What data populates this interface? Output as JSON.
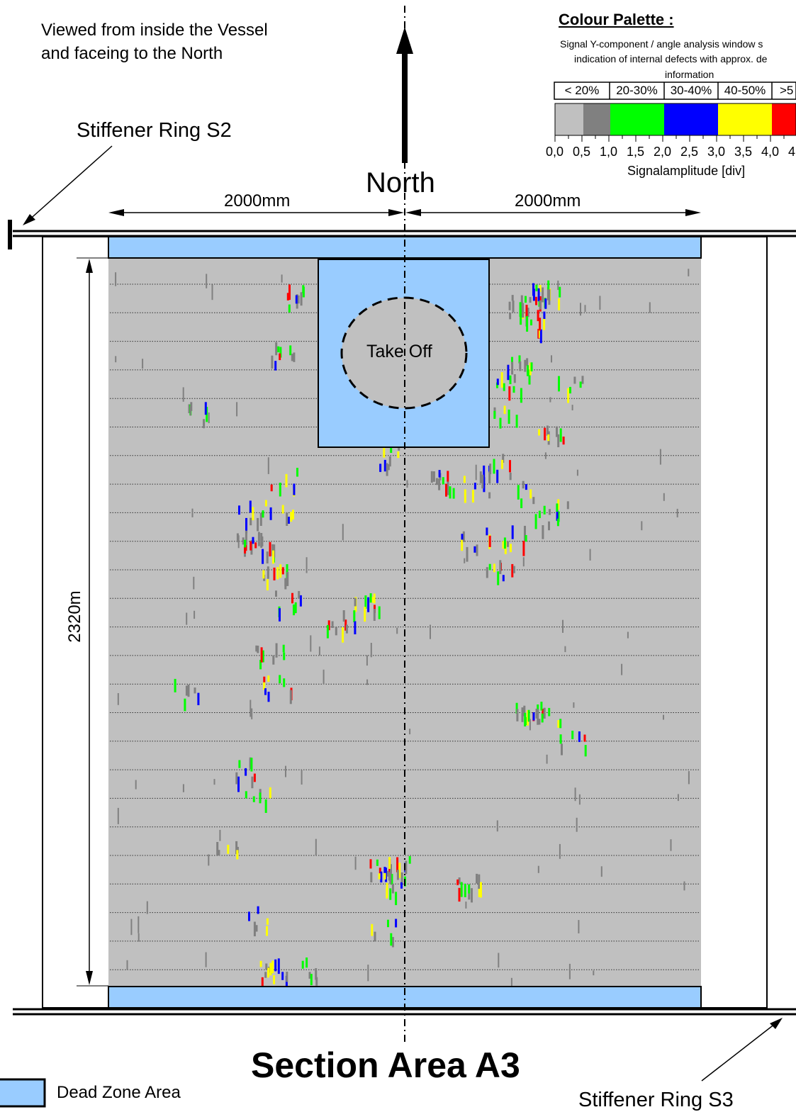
{
  "viewed_text": [
    "Viewed from inside the Vessel",
    "and faceing to the North"
  ],
  "north_label": "North",
  "stiffener_top": "Stiffener Ring S2",
  "stiffener_bottom": "Stiffener Ring S3",
  "dim_left": "2000mm",
  "dim_right": "2000mm",
  "dim_height": "2320m",
  "takeoff_label": "Take Off",
  "title": "Section Area A3",
  "legend_label": "Dead Zone Area",
  "palette": {
    "title": "Colour Palette :",
    "desc": [
      "Signal Y-component / angle analysis window s",
      "indication of internal defects with approx. de",
      "information"
    ],
    "ranges": [
      "< 20%",
      "20-30%",
      "30-40%",
      "40-50%",
      ">5"
    ],
    "ticks": [
      "0,0",
      "0,5",
      "1,0",
      "1,5",
      "2,0",
      "2,5",
      "3,0",
      "3,5",
      "4,0",
      "4"
    ],
    "axis_label": "Signalamplitude [div]"
  },
  "colors": {
    "dead_zone": "#99ccff",
    "scan_bg": "#c0c0c0",
    "grey_dark": "#808080",
    "green": "#00ff00",
    "blue": "#0000ff",
    "yellow": "#ffff00",
    "red": "#ff0000"
  }
}
